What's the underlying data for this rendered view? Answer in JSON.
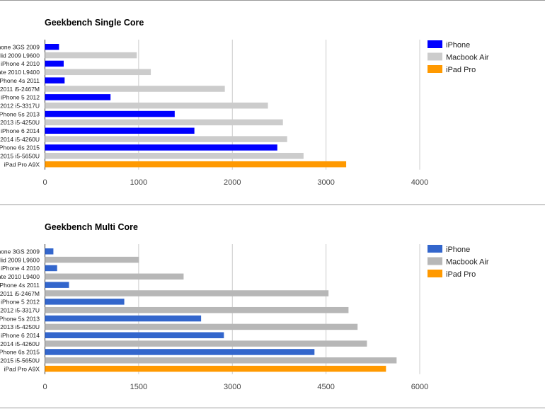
{
  "chart_data": [
    {
      "type": "bar",
      "orientation": "horizontal",
      "title": "Geekbench Single Core",
      "categories": [
        "hone 3GS 2009",
        "lid 2009 L9600",
        "iPhone 4 2010",
        "ate 2010 L9400",
        "iPhone 4s 2011",
        "2011 i5-2467M",
        "iPhone 5 2012",
        "2012 i5-3317U",
        "Phone 5s 2013",
        "2013 i5-4250U",
        "iPhone 6 2014",
        "2014 i5-4260U",
        "Phone 6s 2015",
        "2015 i5-5650U",
        "iPad Pro A9X"
      ],
      "series_of_category": [
        "iPhone",
        "Macbook Air",
        "iPhone",
        "Macbook Air",
        "iPhone",
        "Macbook Air",
        "iPhone",
        "Macbook Air",
        "iPhone",
        "Macbook Air",
        "iPhone",
        "Macbook Air",
        "iPhone",
        "Macbook Air",
        "iPad Pro"
      ],
      "values": [
        150,
        980,
        200,
        1130,
        210,
        1920,
        700,
        2380,
        1385,
        2540,
        1595,
        2585,
        2480,
        2760,
        3215
      ],
      "xlim": [
        0,
        4000
      ],
      "xticks": [
        "0",
        "1000",
        "2000",
        "3000",
        "4000"
      ],
      "grid": true,
      "legend": {
        "placement": "right",
        "entries": [
          {
            "name": "iPhone",
            "color": "#0000ff"
          },
          {
            "name": "Macbook Air",
            "color": "#cccccc"
          },
          {
            "name": "iPad Pro",
            "color": "#ff9900"
          }
        ]
      }
    },
    {
      "type": "bar",
      "orientation": "horizontal",
      "title": "Geekbench Multi Core",
      "categories": [
        "hone 3GS 2009",
        "lid 2009 L9600",
        "iPhone 4 2010",
        "ate 2010 L9400",
        "iPhone 4s 2011",
        "2011 i5-2467M",
        "iPhone 5 2012",
        "2012 i5-3317U",
        "Phone 5s 2013",
        "2013 i5-4250U",
        "iPhone 6 2014",
        "2014 i5-4260U",
        "Phone 6s 2015",
        "2015 i5-5650U",
        "iPad Pro A9X"
      ],
      "series_of_category": [
        "iPhone",
        "Macbook Air",
        "iPhone",
        "Macbook Air",
        "iPhone",
        "Macbook Air",
        "iPhone",
        "Macbook Air",
        "iPhone",
        "Macbook Air",
        "iPhone",
        "Macbook Air",
        "iPhone",
        "Macbook Air",
        "iPad Pro"
      ],
      "values": [
        135,
        1505,
        195,
        2220,
        385,
        4540,
        1270,
        4860,
        2500,
        5005,
        2865,
        5155,
        4315,
        5630,
        5460
      ],
      "xlim": [
        0,
        6000
      ],
      "xticks": [
        "0",
        "1500",
        "3000",
        "4500",
        "6000"
      ],
      "grid": true,
      "legend": {
        "placement": "right",
        "entries": [
          {
            "name": "iPhone",
            "color": "#3366cc"
          },
          {
            "name": "Macbook Air",
            "color": "#b7b7b7"
          },
          {
            "name": "iPad Pro",
            "color": "#ff9900"
          }
        ]
      }
    }
  ]
}
